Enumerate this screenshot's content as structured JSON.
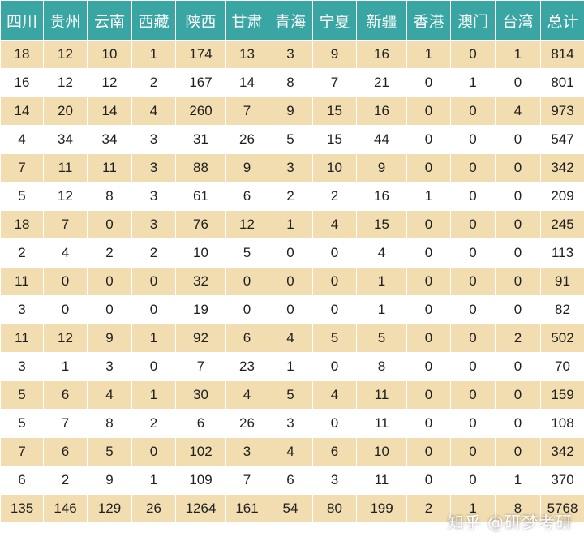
{
  "colors": {
    "header_bg": "#3aa6a4",
    "band_bg": "#f1ddb0",
    "row_bg": "#ffffff"
  },
  "headers": [
    "四川",
    "贵州",
    "云南",
    "西藏",
    "陕西",
    "甘肃",
    "青海",
    "宁夏",
    "新疆",
    "香港",
    "澳门",
    "台湾",
    "总计"
  ],
  "rows": [
    [
      "18",
      "12",
      "10",
      "1",
      "174",
      "13",
      "3",
      "9",
      "16",
      "1",
      "0",
      "1",
      "814"
    ],
    [
      "16",
      "12",
      "12",
      "2",
      "167",
      "14",
      "8",
      "7",
      "21",
      "0",
      "1",
      "0",
      "801"
    ],
    [
      "14",
      "20",
      "14",
      "4",
      "260",
      "7",
      "9",
      "15",
      "16",
      "0",
      "0",
      "4",
      "973"
    ],
    [
      "4",
      "34",
      "34",
      "3",
      "31",
      "26",
      "5",
      "15",
      "44",
      "0",
      "0",
      "0",
      "547"
    ],
    [
      "7",
      "11",
      "11",
      "3",
      "88",
      "9",
      "3",
      "10",
      "9",
      "0",
      "0",
      "0",
      "342"
    ],
    [
      "5",
      "12",
      "8",
      "3",
      "61",
      "6",
      "2",
      "2",
      "16",
      "1",
      "0",
      "0",
      "209"
    ],
    [
      "18",
      "7",
      "0",
      "3",
      "76",
      "12",
      "1",
      "4",
      "15",
      "0",
      "0",
      "0",
      "245"
    ],
    [
      "2",
      "4",
      "2",
      "2",
      "10",
      "5",
      "0",
      "0",
      "4",
      "0",
      "0",
      "0",
      "113"
    ],
    [
      "11",
      "0",
      "0",
      "0",
      "32",
      "0",
      "0",
      "0",
      "1",
      "0",
      "0",
      "0",
      "91"
    ],
    [
      "3",
      "0",
      "0",
      "0",
      "19",
      "0",
      "0",
      "0",
      "1",
      "0",
      "0",
      "0",
      "82"
    ],
    [
      "11",
      "12",
      "9",
      "1",
      "92",
      "6",
      "4",
      "5",
      "5",
      "0",
      "0",
      "2",
      "502"
    ],
    [
      "3",
      "1",
      "3",
      "0",
      "7",
      "23",
      "1",
      "0",
      "8",
      "0",
      "0",
      "0",
      "70"
    ],
    [
      "5",
      "6",
      "4",
      "1",
      "30",
      "4",
      "5",
      "4",
      "11",
      "0",
      "0",
      "0",
      "159"
    ],
    [
      "5",
      "7",
      "8",
      "2",
      "6",
      "26",
      "3",
      "0",
      "11",
      "0",
      "0",
      "0",
      "108"
    ],
    [
      "7",
      "6",
      "5",
      "0",
      "102",
      "3",
      "4",
      "6",
      "10",
      "0",
      "0",
      "0",
      "342"
    ],
    [
      "6",
      "2",
      "9",
      "1",
      "109",
      "7",
      "6",
      "3",
      "11",
      "0",
      "0",
      "1",
      "370"
    ],
    [
      "135",
      "146",
      "129",
      "26",
      "1264",
      "161",
      "54",
      "80",
      "199",
      "2",
      "1",
      "8",
      "5768"
    ]
  ],
  "watermark": "知乎 @研梦考研"
}
